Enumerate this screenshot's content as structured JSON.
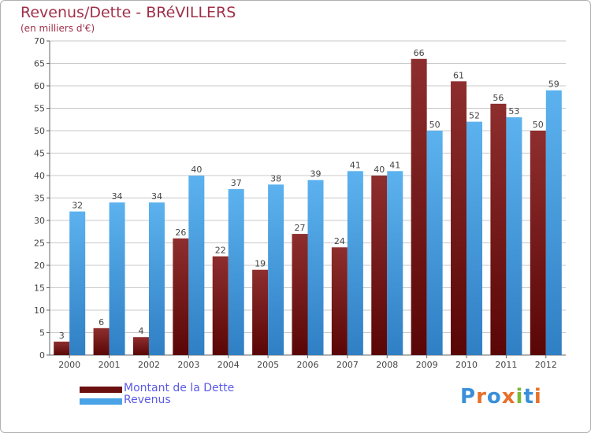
{
  "header": {
    "title": "Revenus/Dette - BRéVILLERS",
    "subtitle": "(en milliers d'€)"
  },
  "colors": {
    "dette": "#7a1818",
    "revenus": "#4aa3e6",
    "grid": "#c8c8c8",
    "text": "#444444",
    "title": "#a0304a",
    "legend_text": "#5a5ae8"
  },
  "legend": {
    "items": [
      {
        "label": "Montant de la Dette",
        "color": "#6b0f0f"
      },
      {
        "label": "Revenus",
        "color": "#4aa3e6"
      }
    ]
  },
  "logo": {
    "text": "Proxiti",
    "letters": [
      "P",
      "r",
      "o",
      "x",
      "i",
      "t",
      "i"
    ],
    "letter_colors": [
      "#3a8fd8",
      "#e8702a",
      "#3a8fd8",
      "#e8702a",
      "#7ab83a",
      "#3a8fd8",
      "#e8702a"
    ]
  },
  "chart_data": {
    "type": "bar",
    "title": "Revenus/Dette - BRéVILLERS",
    "subtitle": "(en milliers d'€)",
    "categories": [
      "2000",
      "2001",
      "2002",
      "2003",
      "2004",
      "2005",
      "2006",
      "2007",
      "2008",
      "2009",
      "2010",
      "2011",
      "2012"
    ],
    "series": [
      {
        "name": "Montant de la Dette",
        "values": [
          3,
          6,
          4,
          26,
          22,
          19,
          27,
          24,
          40,
          66,
          61,
          56,
          50
        ]
      },
      {
        "name": "Revenus",
        "values": [
          32,
          34,
          34,
          40,
          37,
          38,
          39,
          41,
          41,
          50,
          52,
          53,
          59
        ]
      }
    ],
    "ylim": [
      0,
      70
    ],
    "yticks": [
      "0",
      "5",
      "10",
      "15",
      "20",
      "25",
      "30",
      "35",
      "40",
      "45",
      "50",
      "55",
      "60",
      "65",
      "70"
    ],
    "grid": true,
    "legend_position": "bottom-left"
  }
}
